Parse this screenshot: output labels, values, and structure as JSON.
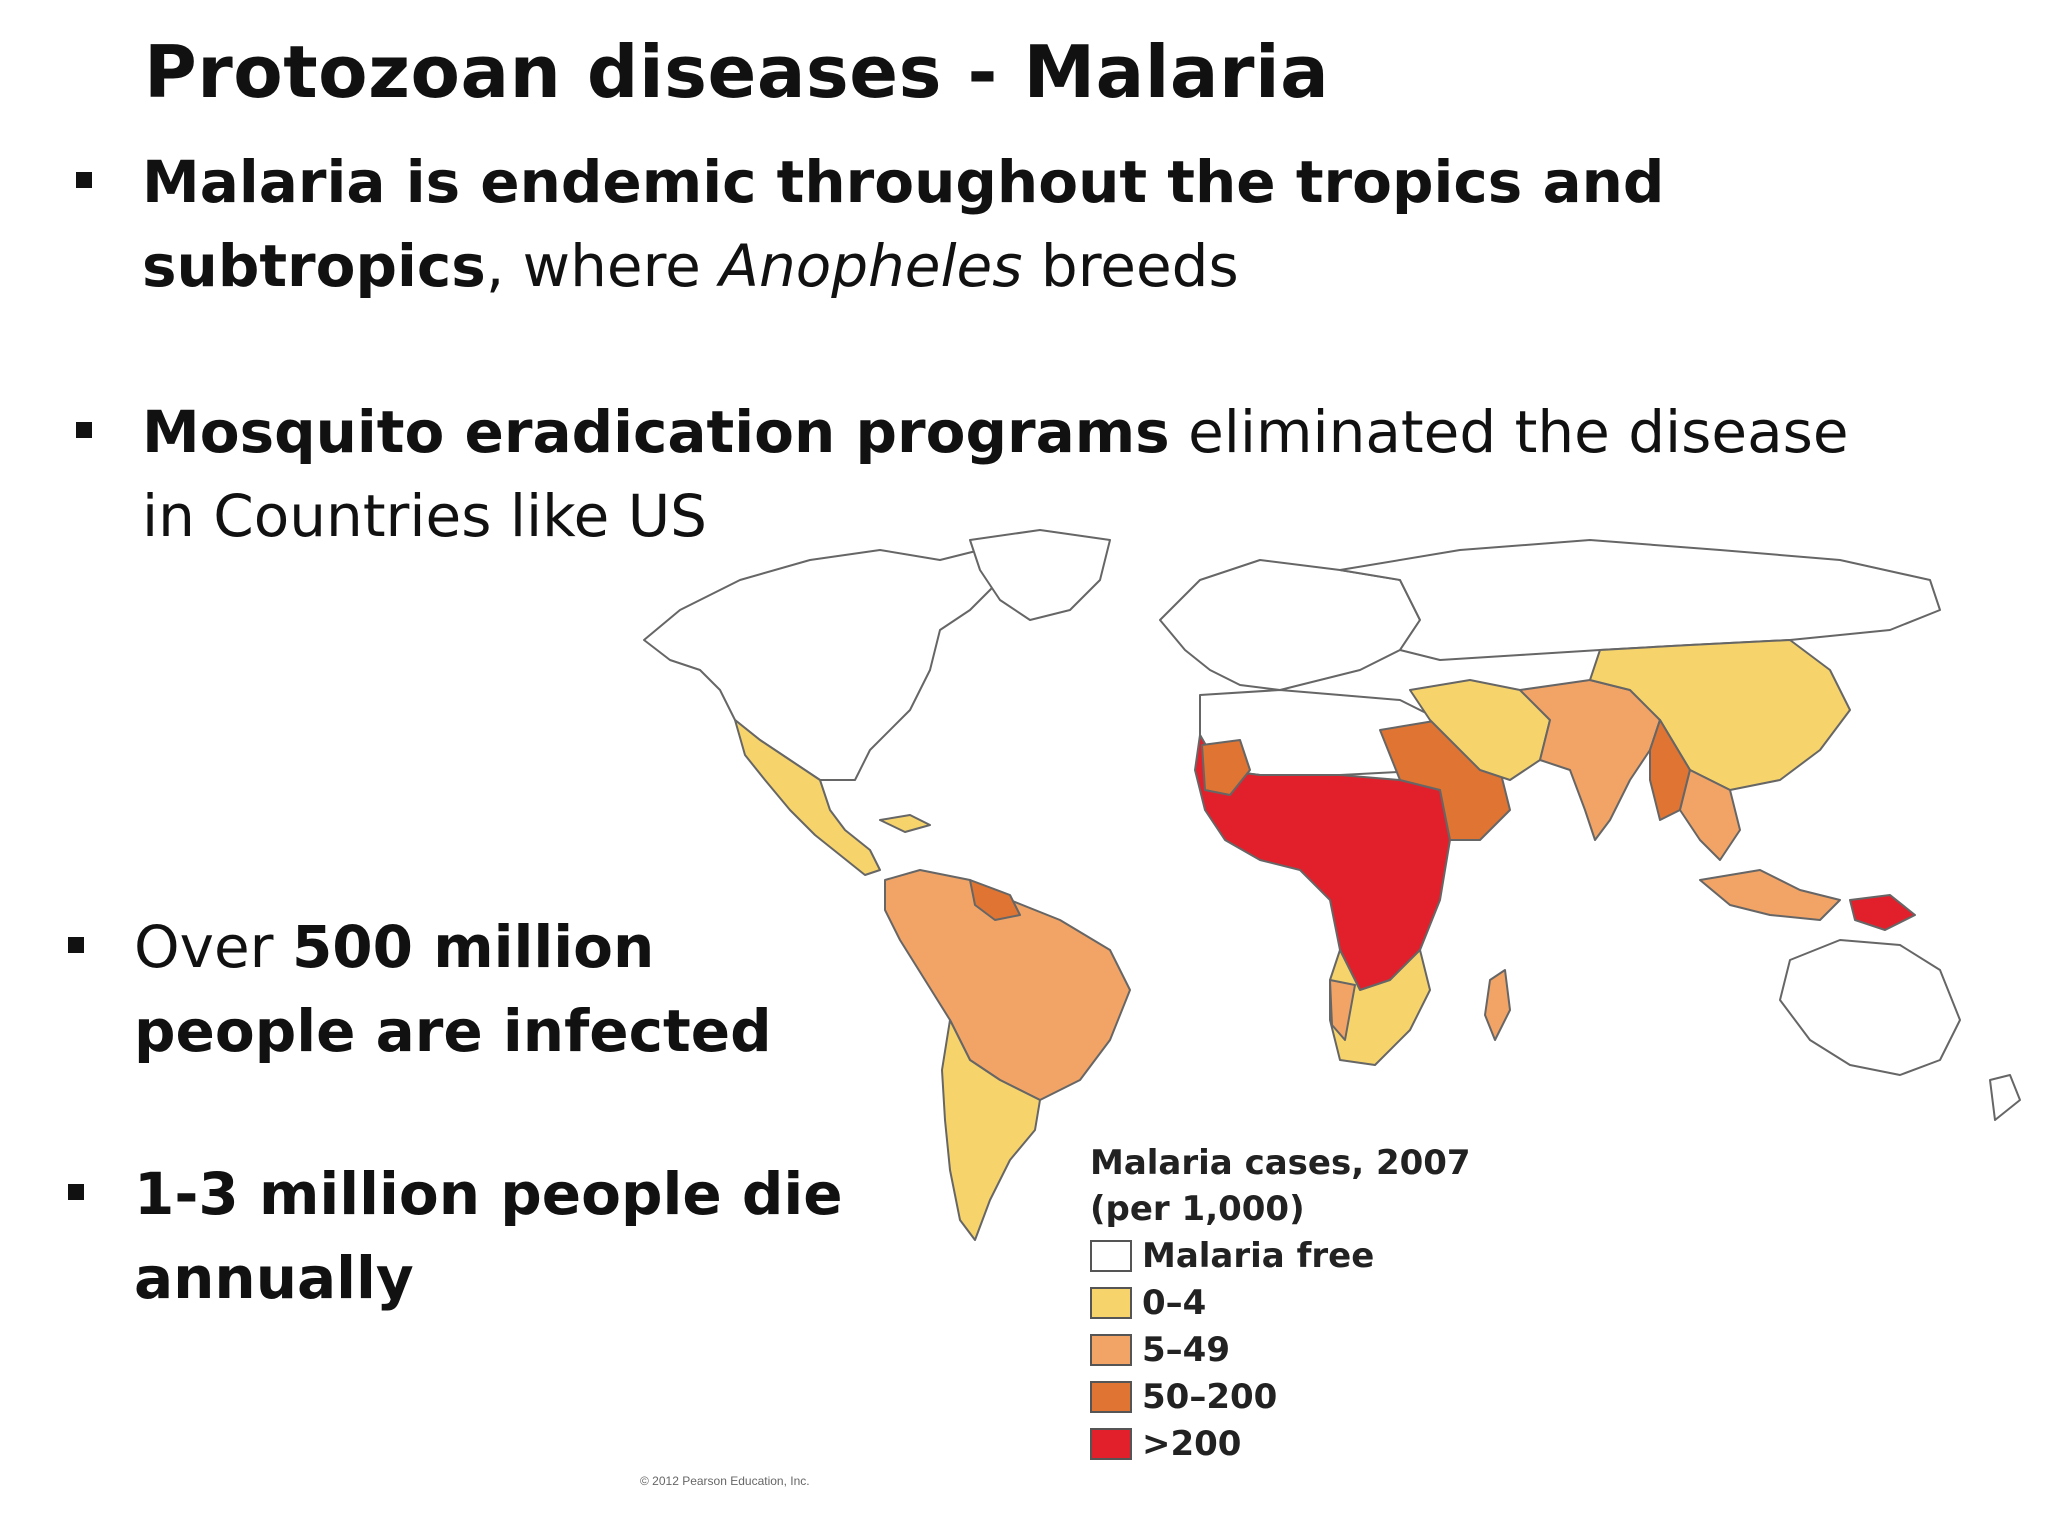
{
  "title": "Protozoan diseases - Malaria",
  "bullets": {
    "b1": {
      "bold": "Malaria is endemic throughout the tropics and subtropics",
      "rest1": ", where ",
      "italic": "Anopheles",
      "rest2": " breeds"
    },
    "b2": {
      "bold": "Mosquito eradication programs",
      "rest": " eliminated the disease in Countries like US"
    },
    "b3": {
      "pre": "Over ",
      "bold": "500 million people are infected"
    },
    "b4": {
      "bold": "1-3 million people die annually"
    }
  },
  "legend": {
    "title1": "Malaria cases, 2007",
    "title2": "(per 1,000)",
    "items": [
      {
        "label": "Malaria free",
        "color": "#ffffff"
      },
      {
        "label": "0–4",
        "color": "#f7d46b"
      },
      {
        "label": "5–49",
        "color": "#f2a466"
      },
      {
        "label": "50–200",
        "color": "#df7433"
      },
      {
        "label": ">200",
        "color": "#e2202c"
      }
    ]
  },
  "colors": {
    "free": "#ffffff",
    "low": "#f7d46b",
    "mid": "#f2a466",
    "high": "#df7433",
    "vhigh": "#e2202c",
    "border": "#666666"
  },
  "icons": {
    "bullet": "square-bullet-icon",
    "map": "world-map-icon"
  },
  "copyright": "© 2012 Pearson Education, Inc."
}
